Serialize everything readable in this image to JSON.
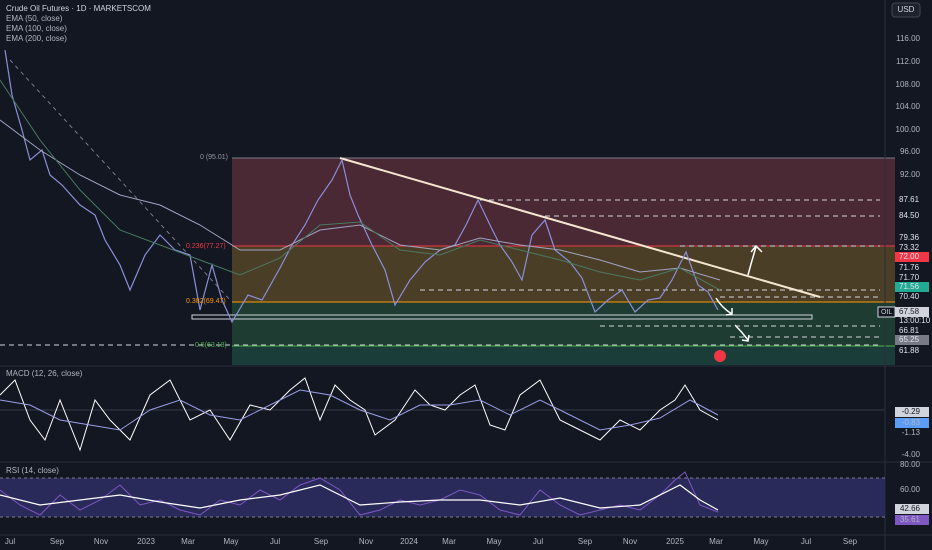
{
  "header": {
    "title": "Crude Oil Futures · 1D · MARKETSCOM",
    "indicators": [
      "EMA (50, close)",
      "EMA (100, close)",
      "EMA (200, close)"
    ],
    "currency": "USD"
  },
  "price_axis": [
    "116.00",
    "112.00",
    "108.00",
    "104.00",
    "100.00",
    "96.00",
    "92.00"
  ],
  "price_badges": [
    "87.61",
    "84.50",
    "79.36",
    "73.32",
    "72.00",
    "71.76",
    "71.70",
    "71.56",
    "70.40",
    "67.58",
    "13:00:10",
    "66.81",
    "65.25",
    "61.88"
  ],
  "symbol": "OIL",
  "fib_labels": [
    "0 (95.01)",
    "0.236(77.27)",
    "0.382(69.47)",
    "0.5(63.18)"
  ],
  "macd": {
    "title": "MACD (12, 26, close)",
    "labels": [
      "-0.29",
      "-0.83",
      "-1.13",
      "-4.00"
    ]
  },
  "rsi": {
    "title": "RSI (14, close)",
    "labels": [
      "80.00",
      "60.00",
      "42.66",
      "35.61"
    ]
  },
  "x_axis": [
    "Jul",
    "Sep",
    "Nov",
    "2023",
    "Mar",
    "May",
    "Jul",
    "Sep",
    "Nov",
    "2024",
    "Mar",
    "May",
    "Jul",
    "Sep",
    "Nov",
    "2025",
    "Mar",
    "May",
    "Jul",
    "Sep"
  ]
}
